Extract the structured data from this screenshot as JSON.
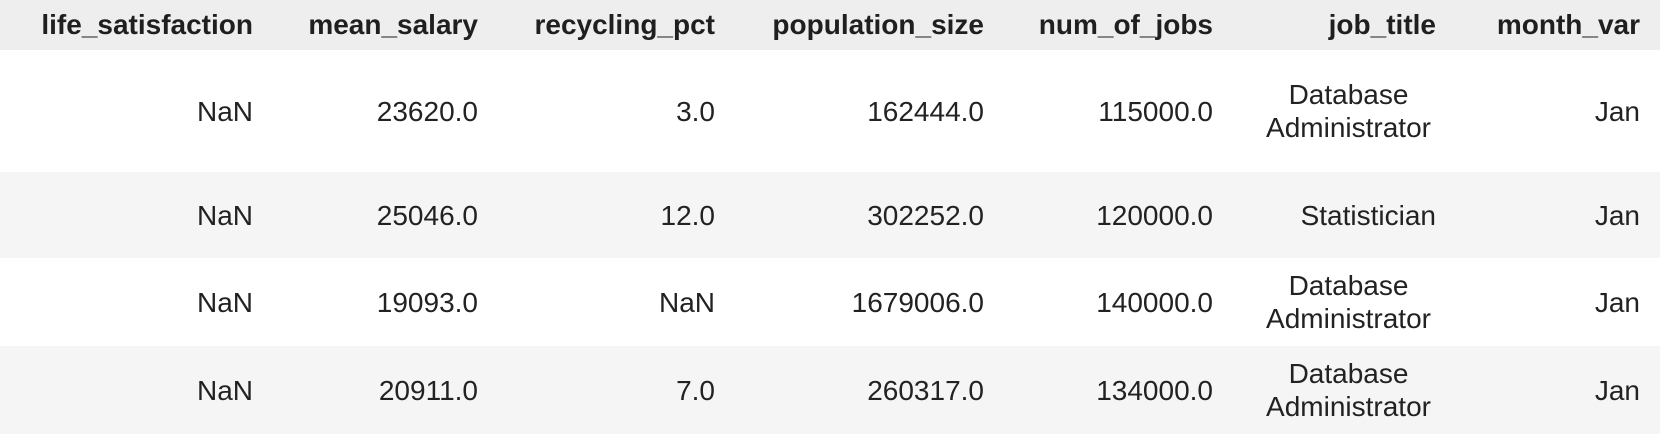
{
  "table": {
    "columns": [
      "life_satisfaction",
      "mean_salary",
      "recycling_pct",
      "population_size",
      "num_of_jobs",
      "job_title",
      "month_var"
    ],
    "rows": [
      [
        "NaN",
        "23620.0",
        "3.0",
        "162444.0",
        "115000.0",
        "Database Administrator",
        "Jan"
      ],
      [
        "NaN",
        "25046.0",
        "12.0",
        "302252.0",
        "120000.0",
        "Statistician",
        "Jan"
      ],
      [
        "NaN",
        "19093.0",
        "NaN",
        "1679006.0",
        "140000.0",
        "Database Administrator",
        "Jan"
      ],
      [
        "NaN",
        "20911.0",
        "7.0",
        "260317.0",
        "134000.0",
        "Database Administrator",
        "Jan"
      ]
    ]
  }
}
